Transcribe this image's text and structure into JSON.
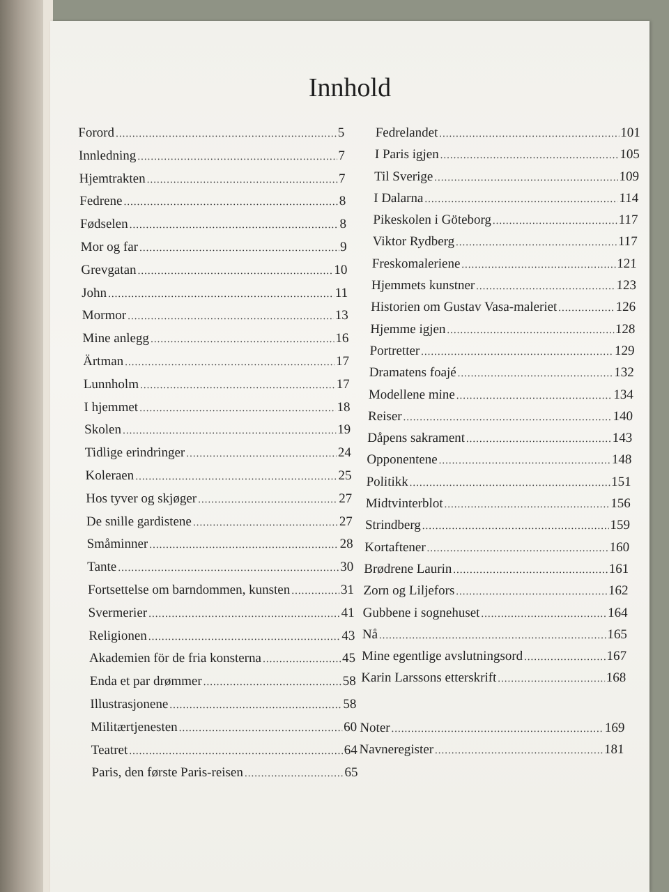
{
  "title": "Innhold",
  "left": [
    {
      "title": "Forord",
      "page": "5"
    },
    {
      "title": "Innledning",
      "page": "7"
    },
    {
      "title": "Hjemtrakten",
      "page": "7"
    },
    {
      "title": "Fedrene",
      "page": "8"
    },
    {
      "title": "Fødselen",
      "page": "8"
    },
    {
      "title": "Mor og far",
      "page": "9"
    },
    {
      "title": "Grevgatan",
      "page": "10"
    },
    {
      "title": "John",
      "page": "11"
    },
    {
      "title": "Mormor",
      "page": "13"
    },
    {
      "title": "Mine anlegg",
      "page": "16"
    },
    {
      "title": "Ärtman",
      "page": "17"
    },
    {
      "title": "Lunnholm",
      "page": "17"
    },
    {
      "title": "I hjemmet",
      "page": "18"
    },
    {
      "title": "Skolen",
      "page": "19"
    },
    {
      "title": "Tidlige erindringer",
      "page": "24"
    },
    {
      "title": "Koleraen",
      "page": "25"
    },
    {
      "title": "Hos tyver og skjøger",
      "page": "27"
    },
    {
      "title": "De snille gardistene",
      "page": "27"
    },
    {
      "title": "Småminner",
      "page": "28"
    },
    {
      "title": "Tante",
      "page": "30"
    },
    {
      "title": "Fortsettelse om barndommen, kunsten",
      "page": "31"
    },
    {
      "title": "Svermerier",
      "page": "41"
    },
    {
      "title": "Religionen",
      "page": "43"
    },
    {
      "title": "Akademien för de fria konsterna",
      "page": "45"
    },
    {
      "title": "Enda et par drømmer",
      "page": "58"
    },
    {
      "title": "Illustrasjonene",
      "page": "58"
    },
    {
      "title": "Militærtjenesten",
      "page": "60"
    },
    {
      "title": "Teatret",
      "page": "64"
    },
    {
      "title": "Paris, den første Paris-reisen",
      "page": "65"
    }
  ],
  "right": [
    {
      "title": "Fedrelandet",
      "page": "101"
    },
    {
      "title": "I Paris igjen",
      "page": "105"
    },
    {
      "title": "Til Sverige",
      "page": "109"
    },
    {
      "title": "I Dalarna",
      "page": "114"
    },
    {
      "title": "Pikeskolen i Göteborg",
      "page": "117"
    },
    {
      "title": "Viktor Rydberg",
      "page": "117"
    },
    {
      "title": "Freskomaleriene",
      "page": "121"
    },
    {
      "title": "Hjemmets kunstner",
      "page": "123"
    },
    {
      "title": "Historien om Gustav Vasa-maleriet",
      "page": "126"
    },
    {
      "title": "Hjemme igjen",
      "page": "128"
    },
    {
      "title": "Portretter",
      "page": "129"
    },
    {
      "title": "Dramatens foajé",
      "page": "132"
    },
    {
      "title": "Modellene mine",
      "page": "134"
    },
    {
      "title": "Reiser",
      "page": "140"
    },
    {
      "title": "Dåpens sakrament",
      "page": "143"
    },
    {
      "title": "Opponentene",
      "page": "148"
    },
    {
      "title": "Politikk",
      "page": "151"
    },
    {
      "title": "Midtvinterblot",
      "page": "156"
    },
    {
      "title": "Strindberg",
      "page": "159"
    },
    {
      "title": "Kortaftener",
      "page": "160"
    },
    {
      "title": "Brødrene Laurin",
      "page": "161"
    },
    {
      "title": "Zorn og Liljefors",
      "page": "162"
    },
    {
      "title": "Gubbene i sognehuset",
      "page": "164"
    },
    {
      "title": "Nå",
      "page": "165"
    },
    {
      "title": "Mine egentlige avslutningsord",
      "page": "167"
    },
    {
      "title": "Karin Larssons etterskrift",
      "page": "168"
    }
  ],
  "right_end": [
    {
      "title": "Noter",
      "page": "169"
    },
    {
      "title": "Navneregister",
      "page": "181"
    }
  ]
}
